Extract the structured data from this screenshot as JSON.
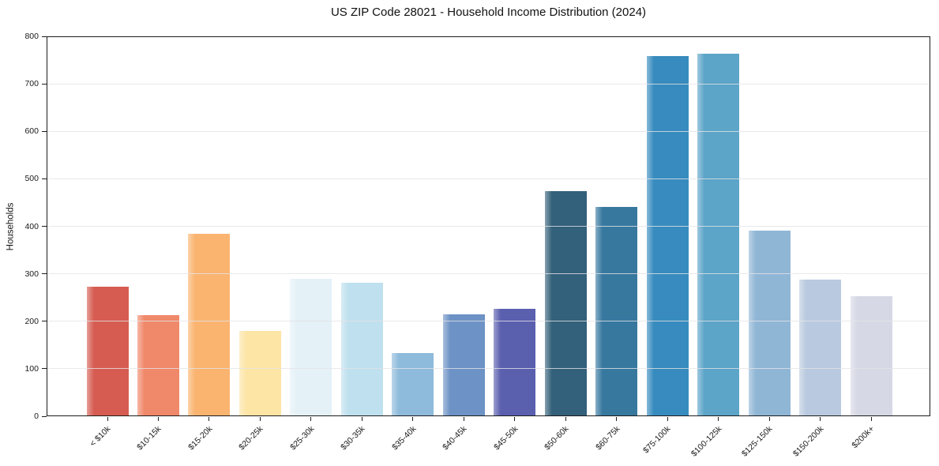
{
  "chart_data": {
    "type": "bar",
    "title": "US ZIP Code 28021 - Household Income Distribution (2024)",
    "xlabel": "",
    "ylabel": "Households",
    "ylim": [
      0,
      800
    ],
    "yticks": [
      0,
      100,
      200,
      300,
      400,
      500,
      600,
      700,
      800
    ],
    "grid": true,
    "legend": false,
    "x_tick_rotation_deg": 45,
    "categories": [
      "< $10k",
      "$10-15k",
      "$15-20k",
      "$20-25k",
      "$25-30k",
      "$30-35k",
      "$35-40k",
      "$40-45k",
      "$45-50k",
      "$50-60k",
      "$60-75k",
      "$75-100k",
      "$100-125k",
      "$125-150k",
      "$150-200k",
      "$200k+"
    ],
    "values": [
      272,
      213,
      385,
      179,
      290,
      281,
      133,
      215,
      227,
      474,
      441,
      758,
      763,
      391,
      287,
      253
    ],
    "bar_colors": [
      "#d65c51",
      "#f0886a",
      "#fab470",
      "#fde5a5",
      "#e4f1f7",
      "#bfe0ee",
      "#8ebbdb",
      "#6d92c5",
      "#5a5fae",
      "#33607a",
      "#37789f",
      "#378bbe",
      "#5ca4c8",
      "#90b6d6",
      "#b9c9df",
      "#d6d8e5"
    ],
    "spine_color": "#1c1c1c",
    "gridline_color": "#e4e4e6",
    "text_color": "#1a1a1a"
  }
}
